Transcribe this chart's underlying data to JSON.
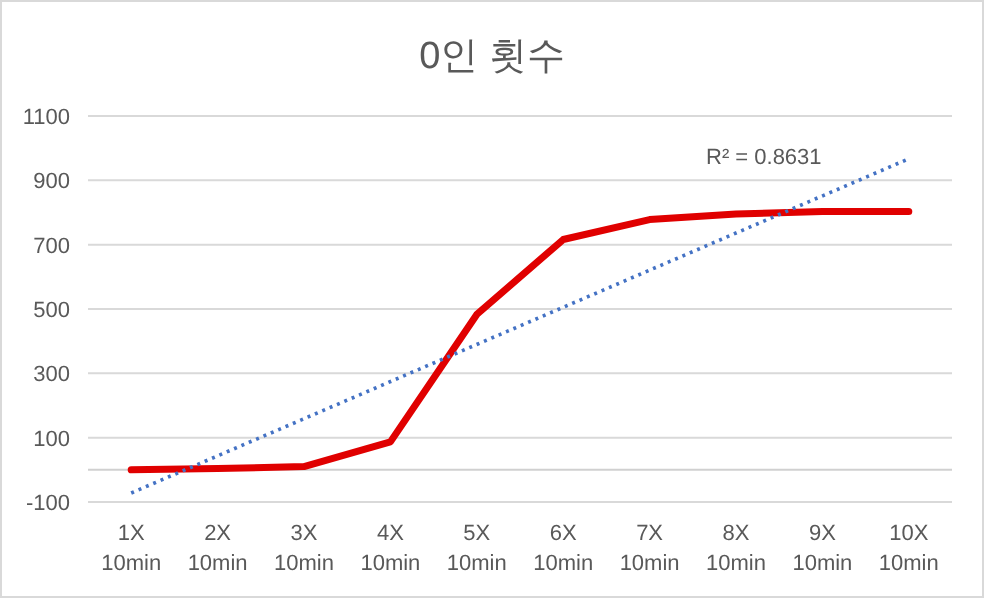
{
  "chart_data": {
    "type": "line",
    "title": "0인 횟수",
    "categories": [
      "1X\n10min",
      "2X\n10min",
      "3X\n10min",
      "4X\n10min",
      "5X\n10min",
      "6X\n10min",
      "7X\n10min",
      "8X\n10min",
      "9X\n10min",
      "10X\n10min"
    ],
    "series": [
      {
        "color": "#e00000",
        "values": [
          0,
          4,
          10,
          87,
          483,
          716,
          778,
          795,
          803,
          803
        ],
        "line_style": "solid"
      },
      {
        "type": "line",
        "color": "#4472c4",
        "x": [
          "1X\n10min",
          "10X\n10min"
        ],
        "values": [
          -72,
          967
        ],
        "line_style": "dotted"
      }
    ],
    "ylim": [
      -100,
      1100
    ],
    "yticks": [
      -100,
      100,
      300,
      500,
      700,
      900,
      1100
    ],
    "grid": "y",
    "ref_lines": [
      {
        "axis": "y",
        "value": 0,
        "color": "#d0d0d0"
      }
    ],
    "annotations": [
      "R² = 0.8631"
    ]
  }
}
